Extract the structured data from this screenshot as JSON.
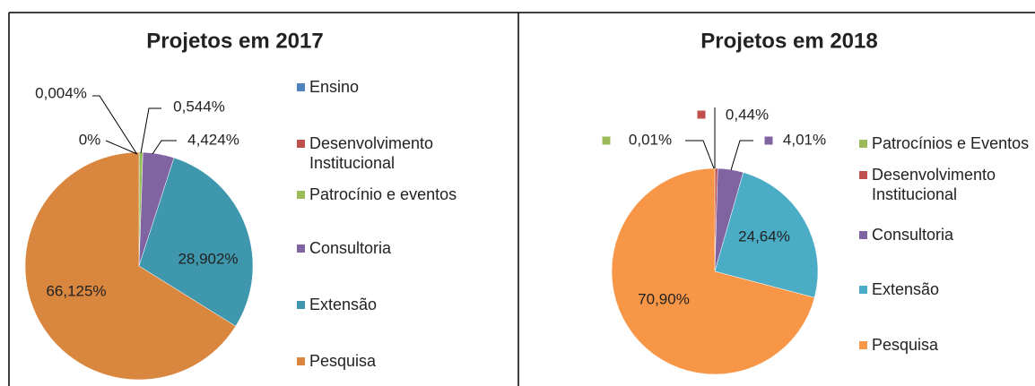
{
  "chart_data": [
    {
      "type": "pie",
      "title": "Projetos em 2017",
      "categories": [
        "Ensino",
        "Desenvolvimento Institucional",
        "Patrocínio e eventos",
        "Consultoria",
        "Extensão",
        "Pesquisa"
      ],
      "values": [
        0,
        0.004,
        0.544,
        4.424,
        28.902,
        66.125
      ],
      "value_labels": [
        "0%",
        "0,004%",
        "0,544%",
        "4,424%",
        "28,902%",
        "66,125%"
      ],
      "colors": [
        "#4f81bd",
        "#c0504d",
        "#9bbb59",
        "#8064a2",
        "#3e97ad",
        "#d9863f"
      ]
    },
    {
      "type": "pie",
      "title": "Projetos em 2018",
      "categories": [
        "Patrocínios e Eventos",
        "Desenvolvimento Institucional",
        "Consultoria",
        "Extensão",
        "Pesquisa"
      ],
      "values": [
        0.01,
        0.44,
        4.01,
        24.64,
        70.9
      ],
      "value_labels": [
        "0,01%",
        "0,44%",
        "4,01%",
        "24,64%",
        "70,90%"
      ],
      "colors": [
        "#9bbb59",
        "#c0504d",
        "#8064a2",
        "#4bacc6",
        "#f79646"
      ]
    }
  ]
}
